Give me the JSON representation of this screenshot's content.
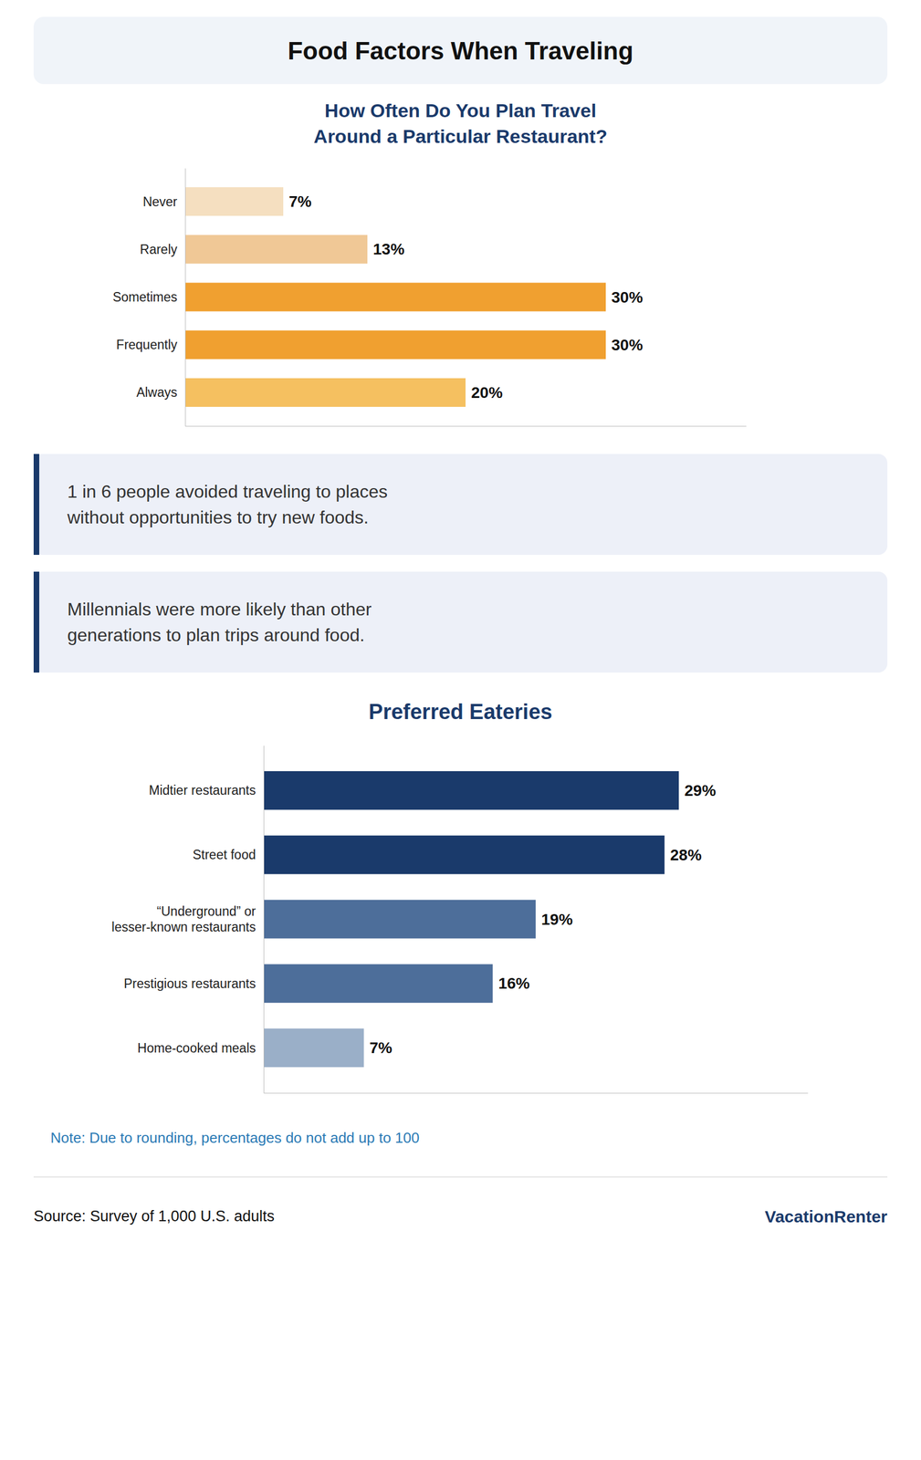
{
  "title": "Food Factors When Traveling",
  "chart_data": [
    {
      "type": "bar",
      "orientation": "horizontal",
      "title": "How Often Do You Plan Travel\nAround a Particular Restaurant?",
      "categories": [
        "Never",
        "Rarely",
        "Sometimes",
        "Frequently",
        "Always"
      ],
      "values": [
        7,
        13,
        30,
        30,
        20
      ],
      "value_labels": [
        "7%",
        "13%",
        "30%",
        "30%",
        "20%"
      ],
      "colors": [
        "#f5dfc0",
        "#f0c896",
        "#f0a030",
        "#f0a030",
        "#f5c060"
      ],
      "xlim": [
        0,
        40
      ],
      "grid": false,
      "data_labels": true,
      "tick_labels": "y",
      "annotations": [
        "1 in 6 people avoided traveling to places\nwithout opportunities to try new foods.",
        "Millennials were more likely than other\ngenerations to plan trips around food."
      ]
    },
    {
      "type": "bar",
      "orientation": "horizontal",
      "title": "Preferred Eateries",
      "categories": [
        "Midtier restaurants",
        "Street food",
        "“Underground” or\nlesser-known restaurants",
        "Prestigious restaurants",
        "Home-cooked meals"
      ],
      "values": [
        29,
        28,
        19,
        16,
        7
      ],
      "value_labels": [
        "29%",
        "28%",
        "19%",
        "16%",
        "7%"
      ],
      "colors": [
        "#1a3a6b",
        "#1a3a6b",
        "#4d6e9a",
        "#4d6e9a",
        "#9aafc8"
      ],
      "xlim": [
        0,
        38
      ],
      "grid": false,
      "data_labels": true,
      "tick_labels": "y",
      "annotations": [
        "Note: Due to rounding, percentages do not add up to 100",
        "Source: Survey of 1,000 U.S. adults",
        "VacationRenter"
      ]
    }
  ]
}
